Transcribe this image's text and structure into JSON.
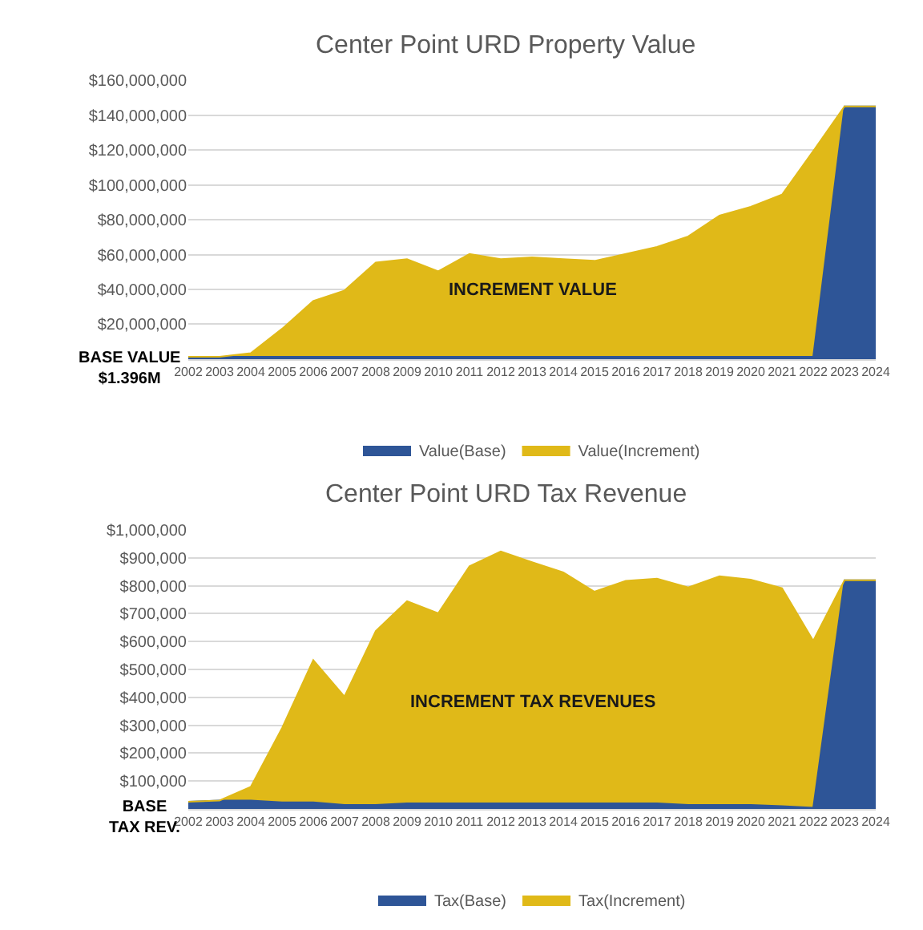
{
  "chart_data": [
    {
      "type": "area",
      "title": "Center Point URD Property Value",
      "stacked": true,
      "grid": "y",
      "legend": "bottom",
      "marker": "none",
      "categories": [
        "2002",
        "2003",
        "2004",
        "2005",
        "2006",
        "2007",
        "2008",
        "2009",
        "2010",
        "2011",
        "2012",
        "2013",
        "2014",
        "2015",
        "2016",
        "2017",
        "2018",
        "2019",
        "2020",
        "2021",
        "2022",
        "2023",
        "2024"
      ],
      "series": [
        {
          "name": "Value(Base)",
          "color": "#2e5597",
          "values": [
            1396000,
            1396000,
            1396000,
            1396000,
            1396000,
            1396000,
            1396000,
            1396000,
            1396000,
            1396000,
            1396000,
            1396000,
            1396000,
            1396000,
            1396000,
            1396000,
            1396000,
            1396000,
            1396000,
            1396000,
            1396000,
            145000000,
            145000000
          ]
        },
        {
          "name": "Value(Increment)",
          "color": "#e0b918",
          "values": [
            0,
            0,
            2000000,
            16000000,
            32000000,
            38000000,
            54000000,
            56000000,
            49000000,
            59000000,
            56000000,
            57000000,
            56000000,
            55000000,
            59000000,
            63000000,
            69000000,
            81000000,
            86000000,
            93000000,
            118000000,
            0,
            0
          ]
        }
      ],
      "ylim": [
        0,
        160000000
      ],
      "yticks": [
        {
          "value": 20000000,
          "label": "$20,000,000"
        },
        {
          "value": 40000000,
          "label": "$40,000,000"
        },
        {
          "value": 60000000,
          "label": "$60,000,000"
        },
        {
          "value": 80000000,
          "label": "$80,000,000"
        },
        {
          "value": 100000000,
          "label": "$100,000,000"
        },
        {
          "value": 120000000,
          "label": "$120,000,000"
        },
        {
          "value": 140000000,
          "label": "$140,000,000"
        },
        {
          "value": 160000000,
          "label": "$160,000,000"
        }
      ],
      "annotations": [
        "BASE VALUE\n$1.396M",
        "INCREMENT VALUE"
      ]
    },
    {
      "type": "area",
      "title": "Center Point URD Tax Revenue",
      "stacked": true,
      "grid": "y",
      "legend": "bottom",
      "marker": "none",
      "categories": [
        "2002",
        "2003",
        "2004",
        "2005",
        "2006",
        "2007",
        "2008",
        "2009",
        "2010",
        "2011",
        "2012",
        "2013",
        "2014",
        "2015",
        "2016",
        "2017",
        "2018",
        "2019",
        "2020",
        "2021",
        "2022",
        "2023",
        "2024"
      ],
      "series": [
        {
          "name": "Tax(Base)",
          "color": "#2e5597",
          "values": [
            26000,
            30000,
            30000,
            24000,
            24000,
            14000,
            14000,
            20000,
            20000,
            20000,
            20000,
            20000,
            20000,
            20000,
            20000,
            20000,
            14000,
            14000,
            14000,
            10000,
            4000,
            820000,
            820000
          ]
        },
        {
          "name": "Tax(Increment)",
          "color": "#e0b918",
          "values": [
            0,
            0,
            49000,
            266000,
            510000,
            389000,
            624000,
            725000,
            682000,
            850000,
            903000,
            865000,
            828000,
            759000,
            798000,
            806000,
            780000,
            820000,
            808000,
            782000,
            599000,
            0,
            0
          ]
        }
      ],
      "ylim": [
        0,
        1000000
      ],
      "yticks": [
        {
          "value": 100000,
          "label": "$100,000"
        },
        {
          "value": 200000,
          "label": "$200,000"
        },
        {
          "value": 300000,
          "label": "$300,000"
        },
        {
          "value": 400000,
          "label": "$400,000"
        },
        {
          "value": 500000,
          "label": "$500,000"
        },
        {
          "value": 600000,
          "label": "$600,000"
        },
        {
          "value": 700000,
          "label": "$700,000"
        },
        {
          "value": 800000,
          "label": "$800,000"
        },
        {
          "value": 900000,
          "label": "$900,000"
        },
        {
          "value": 1000000,
          "label": "$1,000,000"
        }
      ],
      "annotations": [
        "BASE\nTAX REV.",
        "INCREMENT TAX REVENUES"
      ]
    }
  ]
}
